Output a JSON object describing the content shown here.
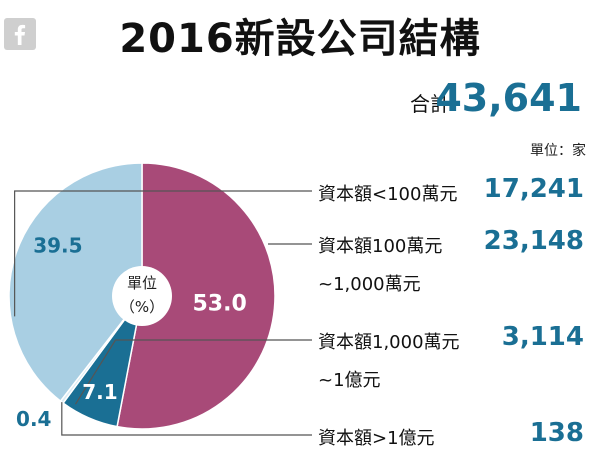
{
  "header": {
    "title": "2016新設公司結構",
    "total_label": "合計",
    "total_value": "43,641",
    "unit": "單位：家"
  },
  "icons": {
    "brand": "facebook-icon"
  },
  "colors": {
    "magenta": "#a84a78",
    "lightblue": "#a9cfe3",
    "blue": "#1a6f94",
    "pale": "#dcecf4"
  },
  "chart_data": {
    "type": "pie",
    "center_label": [
      "單位",
      "（%）"
    ],
    "slices": [
      {
        "category": "資本額<100萬元",
        "percent": 39.5,
        "label": "39.5",
        "count": "17,241",
        "color": "#a9cfe3"
      },
      {
        "category": "資本額100萬元~1,000萬元",
        "percent": 53.0,
        "label": "53.0",
        "count": "23,148",
        "color": "#a84a78"
      },
      {
        "category": "資本額1,000萬元~1億元",
        "percent": 7.1,
        "label": "7.1",
        "count": "3,114",
        "color": "#1a6f94"
      },
      {
        "category": "資本額>1億元",
        "percent": 0.4,
        "label": "0.4",
        "count": "138",
        "color": "#dcecf4"
      }
    ]
  },
  "legend": [
    {
      "line1": "資本額<100萬元",
      "line2": "",
      "value": "17,241"
    },
    {
      "line1": "資本額100萬元",
      "line2": "~1,000萬元",
      "value": "23,148"
    },
    {
      "line1": "資本額1,000萬元",
      "line2": "~1億元",
      "value": "3,114"
    },
    {
      "line1": "資本額>1億元",
      "line2": "",
      "value": "138"
    }
  ]
}
